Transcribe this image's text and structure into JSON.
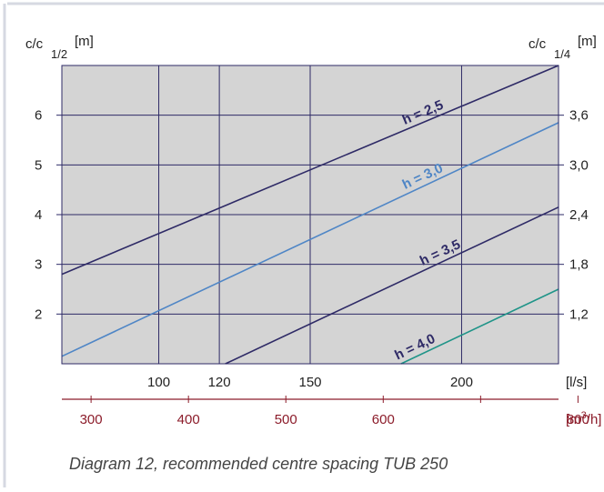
{
  "caption": "Diagram 12, recommended centre spacing TUB 250",
  "chart_data": {
    "type": "line",
    "left_axis": {
      "label": "c/c",
      "sub": "1/2",
      "unit": "[m]",
      "ticks": [
        "2",
        "3",
        "4",
        "5",
        "6"
      ],
      "range": [
        1,
        7
      ]
    },
    "right_axis": {
      "label": "c/c",
      "sub": "1/4",
      "unit": "[m]",
      "ticks": [
        "1,2",
        "1,8",
        "2,4",
        "3,0",
        "3,6"
      ]
    },
    "x_axis_ls": {
      "unit": "[l/s]",
      "ticks": [
        "100",
        "120",
        "150",
        "200"
      ],
      "tick_values": [
        100,
        120,
        150,
        200
      ],
      "range": [
        68,
        232
      ]
    },
    "x_axis_m3h": {
      "unit": "[m",
      "unit_sup": "3",
      "unit_end": "/h]",
      "ticks": [
        "300",
        "400",
        "500",
        "600",
        "800"
      ],
      "tick_values": [
        300,
        400,
        500,
        600,
        800
      ],
      "range": [
        270,
        780
      ]
    },
    "series": [
      {
        "name": "h = 2,5",
        "color": "#2e2a66",
        "points": [
          [
            68,
            2.8
          ],
          [
            232,
            7.0
          ]
        ]
      },
      {
        "name": "h = 3,0",
        "color": "#4f86c6",
        "points": [
          [
            68,
            1.15
          ],
          [
            232,
            5.85
          ]
        ]
      },
      {
        "name": "h = 3,5",
        "color": "#2e2a66",
        "points": [
          [
            122,
            1.0
          ],
          [
            232,
            4.15
          ]
        ]
      },
      {
        "name": "h = 4,0",
        "color": "#1f9488",
        "points": [
          [
            180,
            1.0
          ],
          [
            232,
            2.5
          ]
        ]
      }
    ],
    "grid": true,
    "background": "#d4d4d4"
  }
}
